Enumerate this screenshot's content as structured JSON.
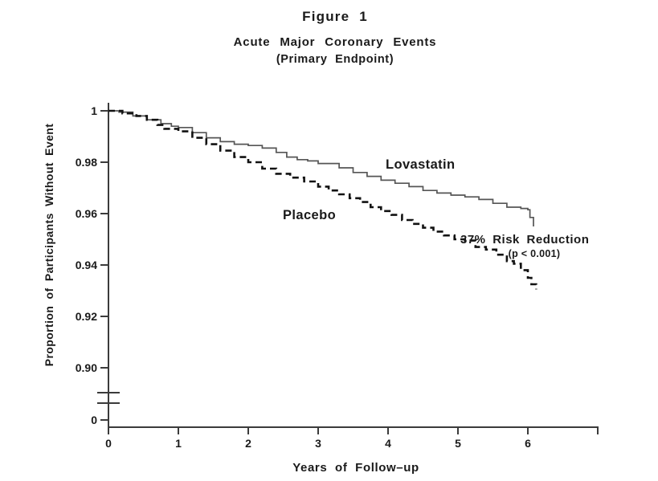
{
  "figure": {
    "title": "Figure 1",
    "subtitle": "Acute Major Coronary Events",
    "subtitle2": "(Primary Endpoint)"
  },
  "labels": {
    "lovastatin": "Lovastatin",
    "placebo": "Placebo",
    "risk_reduction": "37% Risk Reduction",
    "p_value": "(p < 0.001)"
  },
  "colors": {
    "background": "#ffffff",
    "axis": "#3b3b3b",
    "text": "#1a1a1a",
    "lovastatin_curve": "#555555",
    "placebo_curve": "#121212"
  },
  "chart_data": {
    "type": "line",
    "title": "Figure 1 — Acute Major Coronary Events (Primary Endpoint)",
    "xlabel": "Years of Follow–up",
    "ylabel": "Proportion of Participants Without Event",
    "xlim": [
      0,
      7
    ],
    "ylim_displayed": [
      0.9,
      1.0
    ],
    "y_axis_break_to_zero": true,
    "grid": false,
    "legend_position": "inline-curve-labels",
    "step_interpolation": "step-after",
    "xticks": [
      {
        "label": "0",
        "value": 0
      },
      {
        "label": "1",
        "value": 1
      },
      {
        "label": "2",
        "value": 2
      },
      {
        "label": "3",
        "value": 3
      },
      {
        "label": "4",
        "value": 4
      },
      {
        "label": "5",
        "value": 5
      },
      {
        "label": "6",
        "value": 6
      },
      {
        "label": "",
        "value": 7
      }
    ],
    "yticks": [
      {
        "label": "1",
        "value": 1.0
      },
      {
        "label": "0.98",
        "value": 0.98
      },
      {
        "label": "0.96",
        "value": 0.96
      },
      {
        "label": "0.94",
        "value": 0.94
      },
      {
        "label": "0.92",
        "value": 0.92
      },
      {
        "label": "0.90",
        "value": 0.9
      },
      {
        "label": "0",
        "value": null
      }
    ],
    "annotations": [
      {
        "text": "Lovastatin",
        "x": 4.0,
        "y": 0.982
      },
      {
        "text": "Placebo",
        "x": 2.5,
        "y": 0.962
      },
      {
        "text": "37% Risk Reduction",
        "x": 5.05,
        "y": 0.952
      },
      {
        "text": "(p < 0.001)",
        "x": 5.7,
        "y": 0.9465
      }
    ],
    "series": [
      {
        "name": "Lovastatin",
        "style": "solid",
        "color": "#555555",
        "stroke_width": 1.7,
        "points": [
          [
            0,
            1.0
          ],
          [
            0.15,
            0.9995
          ],
          [
            0.35,
            0.998
          ],
          [
            0.55,
            0.9965
          ],
          [
            0.75,
            0.995
          ],
          [
            0.9,
            0.994
          ],
          [
            1.0,
            0.9935
          ],
          [
            1.2,
            0.9915
          ],
          [
            1.4,
            0.9895
          ],
          [
            1.6,
            0.988
          ],
          [
            1.8,
            0.987
          ],
          [
            2.0,
            0.9865
          ],
          [
            2.2,
            0.9855
          ],
          [
            2.4,
            0.9838
          ],
          [
            2.55,
            0.982
          ],
          [
            2.7,
            0.981
          ],
          [
            2.85,
            0.9805
          ],
          [
            3.0,
            0.9795
          ],
          [
            3.3,
            0.9778
          ],
          [
            3.5,
            0.976
          ],
          [
            3.7,
            0.9745
          ],
          [
            3.9,
            0.973
          ],
          [
            4.1,
            0.9718
          ],
          [
            4.3,
            0.9705
          ],
          [
            4.5,
            0.969
          ],
          [
            4.7,
            0.968
          ],
          [
            4.9,
            0.9672
          ],
          [
            5.1,
            0.9665
          ],
          [
            5.3,
            0.9655
          ],
          [
            5.5,
            0.964
          ],
          [
            5.7,
            0.9625
          ],
          [
            5.9,
            0.962
          ],
          [
            6.0,
            0.9615
          ],
          [
            6.03,
            0.9585
          ],
          [
            6.08,
            0.955
          ]
        ]
      },
      {
        "name": "Placebo",
        "style": "dashed",
        "color": "#121212",
        "stroke_width": 2.6,
        "points": [
          [
            0,
            1.0
          ],
          [
            0.2,
            0.999
          ],
          [
            0.4,
            0.998
          ],
          [
            0.55,
            0.9965
          ],
          [
            0.7,
            0.9945
          ],
          [
            0.8,
            0.993
          ],
          [
            1.0,
            0.992
          ],
          [
            1.2,
            0.9895
          ],
          [
            1.4,
            0.987
          ],
          [
            1.6,
            0.9845
          ],
          [
            1.8,
            0.982
          ],
          [
            2.0,
            0.98
          ],
          [
            2.2,
            0.9775
          ],
          [
            2.4,
            0.9755
          ],
          [
            2.6,
            0.974
          ],
          [
            2.8,
            0.9725
          ],
          [
            3.0,
            0.9705
          ],
          [
            3.15,
            0.969
          ],
          [
            3.3,
            0.9675
          ],
          [
            3.45,
            0.966
          ],
          [
            3.6,
            0.9645
          ],
          [
            3.75,
            0.9625
          ],
          [
            3.9,
            0.961
          ],
          [
            4.05,
            0.9595
          ],
          [
            4.2,
            0.9575
          ],
          [
            4.35,
            0.956
          ],
          [
            4.5,
            0.9545
          ],
          [
            4.65,
            0.953
          ],
          [
            4.8,
            0.9515
          ],
          [
            4.95,
            0.95
          ],
          [
            5.1,
            0.9495
          ],
          [
            5.25,
            0.947
          ],
          [
            5.4,
            0.946
          ],
          [
            5.55,
            0.944
          ],
          [
            5.7,
            0.9415
          ],
          [
            5.8,
            0.9405
          ],
          [
            5.9,
            0.938
          ],
          [
            6.0,
            0.935
          ],
          [
            6.05,
            0.9325
          ],
          [
            6.12,
            0.9305
          ]
        ]
      }
    ]
  }
}
